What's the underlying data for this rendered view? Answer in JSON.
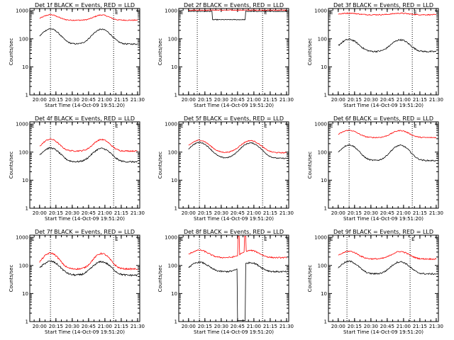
{
  "figure": {
    "background": "#ffffff"
  },
  "style": {
    "black": "#000000",
    "red": "#ff0000"
  },
  "axes": {
    "ylabel": "Counts/sec",
    "xlabel": "Start Time (14-Oct-09 19:51:20)",
    "y_ticks": [
      "1",
      "10",
      "100",
      "1000"
    ],
    "x_ticks": [
      "20:00",
      "20:15",
      "20:30",
      "20:45",
      "21:00",
      "21:15",
      "21:30"
    ]
  },
  "chart_data": [
    {
      "type": "line",
      "title": "Det 1f BLACK = Events, RED = LLD",
      "yscale": "log",
      "ylim": [
        1,
        1200
      ],
      "xlim": [
        "19:51",
        "21:32"
      ],
      "grid": false,
      "vlines": [
        "20:10",
        "21:08"
      ],
      "corner_markers": [
        "E",
        "E"
      ],
      "series": [
        {
          "color": "red",
          "model": {
            "base": 460,
            "amp": 260,
            "c1": "20:10",
            "c2": "20:57",
            "w": 9,
            "noise": 0.04
          }
        },
        {
          "color": "black",
          "model": {
            "base": 65,
            "amp": 160,
            "c1": "20:10",
            "c2": "20:57",
            "w": 10,
            "noise": 0.05
          }
        }
      ]
    },
    {
      "type": "line",
      "title": "Det 2f BLACK = Events, RED = LLD",
      "yscale": "log",
      "ylim": [
        1,
        1200
      ],
      "xlim": [
        "19:51",
        "21:32"
      ],
      "grid": false,
      "vlines": [
        "20:08",
        "21:08"
      ],
      "corner_markers": [
        "E",
        "E"
      ],
      "series": [
        {
          "color": "red",
          "model": {
            "base": 1050,
            "amp": 0,
            "noise": 0.03
          }
        },
        {
          "color": "black",
          "model": {
            "base": 950,
            "amp": 0,
            "dip": [
              "20:22",
              "20:52",
              480
            ],
            "noise": 0.03
          }
        }
      ]
    },
    {
      "type": "line",
      "title": "Det 3f BLACK = Events, RED = LLD",
      "yscale": "log",
      "ylim": [
        1,
        1200
      ],
      "xlim": [
        "19:51",
        "21:32"
      ],
      "grid": false,
      "vlines": [
        "20:10",
        "21:08"
      ],
      "corner_markers": [
        "E",
        "E"
      ],
      "series": [
        {
          "color": "red",
          "model": {
            "base": 720,
            "amp": 100,
            "c1": "20:10",
            "c2": "20:57",
            "w": 10,
            "noise": 0.04
          }
        },
        {
          "color": "black",
          "model": {
            "base": 35,
            "amp": 60,
            "c1": "20:10",
            "c2": "20:57",
            "w": 10,
            "noise": 0.06
          }
        }
      ]
    },
    {
      "type": "line",
      "title": "Det 4f BLACK = Events, RED = LLD",
      "yscale": "log",
      "ylim": [
        1,
        1200
      ],
      "xlim": [
        "19:51",
        "21:32"
      ],
      "grid": false,
      "vlines": [
        "20:10",
        "21:08"
      ],
      "corner_markers": [
        "E",
        "E"
      ],
      "series": [
        {
          "color": "red",
          "model": {
            "base": 110,
            "amp": 180,
            "c1": "20:10",
            "c2": "20:57",
            "w": 9,
            "noise": 0.05
          }
        },
        {
          "color": "black",
          "model": {
            "base": 45,
            "amp": 95,
            "c1": "20:10",
            "c2": "20:57",
            "w": 10,
            "noise": 0.06
          }
        }
      ]
    },
    {
      "type": "line",
      "title": "Det 5f BLACK = Events, RED = LLD",
      "yscale": "log",
      "ylim": [
        1,
        1200
      ],
      "xlim": [
        "19:51",
        "21:32"
      ],
      "grid": false,
      "vlines": [
        "20:10",
        "21:08"
      ],
      "corner_markers": [
        "E",
        "E"
      ],
      "series": [
        {
          "color": "red",
          "model": {
            "base": 95,
            "amp": 170,
            "c1": "20:10",
            "c2": "20:57",
            "w": 11,
            "noise": 0.04
          }
        },
        {
          "color": "black",
          "model": {
            "base": 60,
            "amp": 160,
            "c1": "20:10",
            "c2": "20:57",
            "w": 11,
            "noise": 0.04
          }
        }
      ]
    },
    {
      "type": "line",
      "title": "Det 6f BLACK = Events, RED = LLD",
      "yscale": "log",
      "ylim": [
        1,
        1200
      ],
      "xlim": [
        "19:51",
        "21:32"
      ],
      "grid": false,
      "vlines": [
        "20:10",
        "21:08"
      ],
      "corner_markers": [
        "E",
        "E"
      ],
      "series": [
        {
          "color": "red",
          "model": {
            "base": 330,
            "amp": 270,
            "c1": "20:10",
            "c2": "20:57",
            "w": 10,
            "noise": 0.04
          }
        },
        {
          "color": "black",
          "model": {
            "base": 50,
            "amp": 130,
            "c1": "20:10",
            "c2": "20:57",
            "w": 10,
            "noise": 0.05
          }
        }
      ]
    },
    {
      "type": "line",
      "title": "Det 7f BLACK = Events, RED = LLD",
      "yscale": "log",
      "ylim": [
        1,
        1200
      ],
      "xlim": [
        "19:51",
        "21:32"
      ],
      "grid": false,
      "vlines": [
        "20:10",
        "21:08"
      ],
      "corner_markers": [
        "E",
        "E"
      ],
      "series": [
        {
          "color": "red",
          "model": {
            "base": 75,
            "amp": 200,
            "c1": "20:10",
            "c2": "20:57",
            "w": 9,
            "noise": 0.06
          }
        },
        {
          "color": "black",
          "model": {
            "base": 45,
            "amp": 95,
            "c1": "20:10",
            "c2": "20:57",
            "w": 10,
            "noise": 0.07
          }
        }
      ]
    },
    {
      "type": "line",
      "title": "Det 8f BLACK = Events, RED = LLD",
      "yscale": "log",
      "ylim": [
        1,
        1200
      ],
      "xlim": [
        "19:51",
        "21:32"
      ],
      "grid": false,
      "vlines": [
        "20:10",
        "21:08"
      ],
      "corner_markers": [
        "E",
        "E"
      ],
      "series": [
        {
          "color": "red",
          "model": {
            "base": 190,
            "amp": 160,
            "c1": "20:10",
            "c2": "20:57",
            "w": 10,
            "noise": 0.05,
            "spikes": [
              [
                "20:46",
                1100
              ],
              [
                "20:52",
                1100
              ]
            ]
          }
        },
        {
          "color": "black",
          "model": {
            "base": 60,
            "amp": 70,
            "c1": "20:10",
            "c2": "20:57",
            "w": 10,
            "noise": 0.06,
            "drops": [
              "20:45",
              "20:52"
            ]
          }
        }
      ]
    },
    {
      "type": "line",
      "title": "Det 9f BLACK = Events, RED = LLD",
      "yscale": "log",
      "ylim": [
        1,
        1200
      ],
      "xlim": [
        "19:51",
        "21:32"
      ],
      "grid": false,
      "vlines": [
        "20:08",
        "21:06"
      ],
      "corner_markers": [
        "E",
        "E"
      ],
      "series": [
        {
          "color": "red",
          "model": {
            "base": 170,
            "amp": 150,
            "c1": "20:10",
            "c2": "20:57",
            "w": 10,
            "noise": 0.05
          }
        },
        {
          "color": "black",
          "model": {
            "base": 50,
            "amp": 90,
            "c1": "20:10",
            "c2": "20:57",
            "w": 10,
            "noise": 0.06
          }
        }
      ]
    }
  ]
}
